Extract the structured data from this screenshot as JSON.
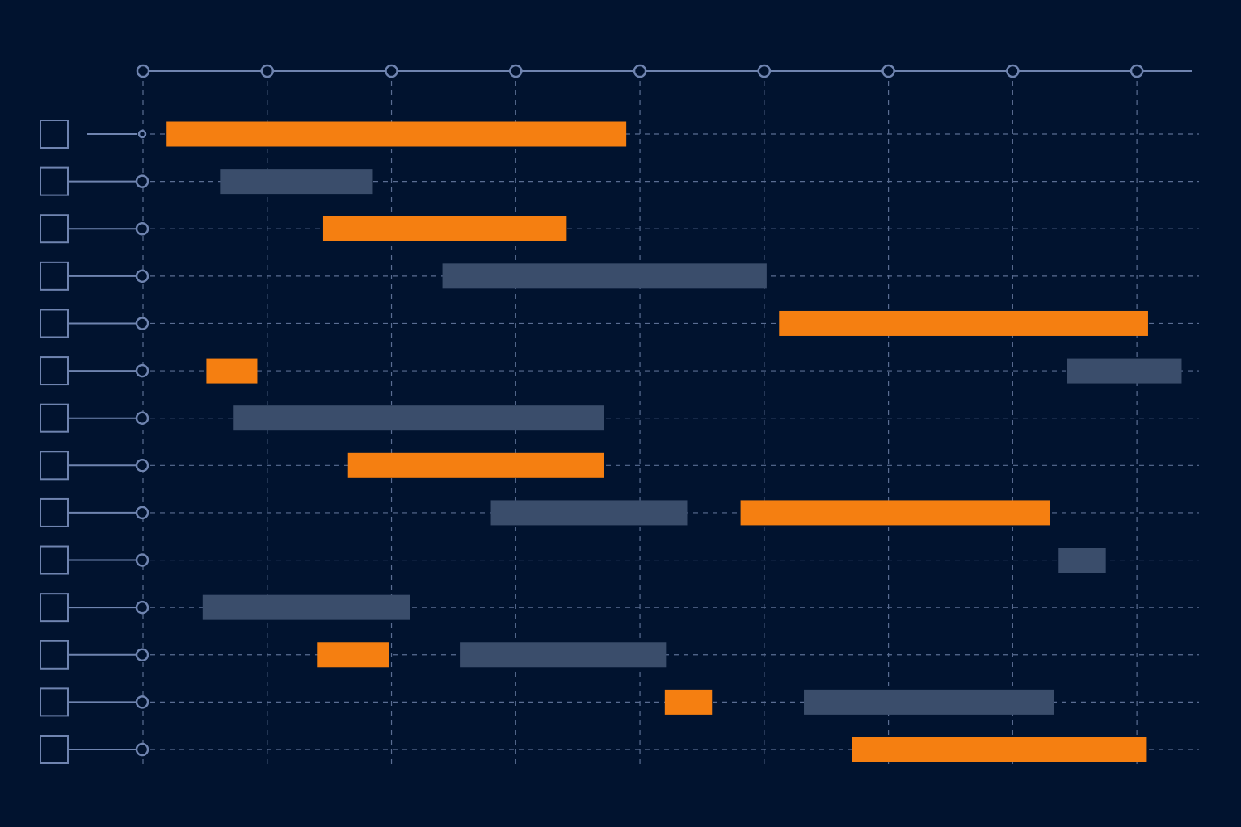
{
  "chart_data": {
    "type": "gantt",
    "xlim": [
      0,
      8.5
    ],
    "xticks": [
      0,
      1,
      2,
      3,
      4,
      5,
      6,
      7,
      8
    ],
    "grid": true,
    "rows": [
      [
        {
          "start": 0.19,
          "end": 3.89,
          "color": "#f57f11"
        }
      ],
      [
        {
          "start": 0.62,
          "end": 1.85,
          "color": "#3a4d6b"
        }
      ],
      [
        {
          "start": 1.45,
          "end": 3.41,
          "color": "#f57f11"
        }
      ],
      [
        {
          "start": 2.41,
          "end": 5.02,
          "color": "#3a4d6b"
        }
      ],
      [
        {
          "start": 5.12,
          "end": 8.09,
          "color": "#f57f11"
        }
      ],
      [
        {
          "start": 0.51,
          "end": 0.92,
          "color": "#f57f11"
        },
        {
          "start": 7.44,
          "end": 8.36,
          "color": "#3a4d6b"
        }
      ],
      [
        {
          "start": 0.73,
          "end": 3.71,
          "color": "#3a4d6b"
        }
      ],
      [
        {
          "start": 1.65,
          "end": 3.71,
          "color": "#f57f11"
        }
      ],
      [
        {
          "start": 2.8,
          "end": 4.38,
          "color": "#3a4d6b"
        },
        {
          "start": 4.81,
          "end": 7.3,
          "color": "#f57f11"
        }
      ],
      [
        {
          "start": 7.37,
          "end": 7.75,
          "color": "#3a4d6b"
        }
      ],
      [
        {
          "start": 0.48,
          "end": 2.15,
          "color": "#3a4d6b"
        }
      ],
      [
        {
          "start": 1.4,
          "end": 1.98,
          "color": "#f57f11"
        },
        {
          "start": 2.55,
          "end": 4.21,
          "color": "#3a4d6b"
        }
      ],
      [
        {
          "start": 4.2,
          "end": 4.58,
          "color": "#f57f11"
        },
        {
          "start": 5.32,
          "end": 7.33,
          "color": "#3a4d6b"
        }
      ],
      [
        {
          "start": 5.71,
          "end": 8.08,
          "color": "#f57f11"
        }
      ]
    ]
  }
}
